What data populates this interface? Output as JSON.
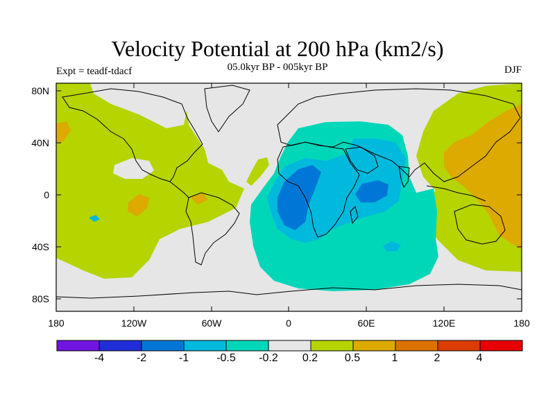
{
  "header": {
    "title": "Velocity Potential at 200 hPa (km2/s)",
    "subtitle": "05.0kyr BP - 005kyr BP",
    "left_label": "Expt = teadf-tdacf",
    "right_label": "DJF"
  },
  "axes": {
    "y_ticks": [
      "80N",
      "40N",
      "0",
      "40S",
      "80S"
    ],
    "x_ticks": [
      "180",
      "120W",
      "60W",
      "0",
      "60E",
      "120E",
      "180"
    ]
  },
  "colors": {
    "neutral": "#e6e6e6",
    "pos_02": "#b5d400",
    "pos_05": "#dcaa00",
    "neg_02": "#00d7b9",
    "neg_05": "#00b9dc",
    "neg_1": "#0077d6",
    "coast": "#000000"
  },
  "colorbar": {
    "colors": [
      "#7014e0",
      "#1f2ed6",
      "#0077d6",
      "#00b9dc",
      "#00d7b9",
      "#e6e6e6",
      "#b5d400",
      "#dcaa00",
      "#dc7300",
      "#dc3c00",
      "#e60000"
    ],
    "labels": [
      "-4",
      "-2",
      "-1",
      "-0.5",
      "-0.2",
      "0.2",
      "0.5",
      "1",
      "2",
      "4"
    ]
  }
}
